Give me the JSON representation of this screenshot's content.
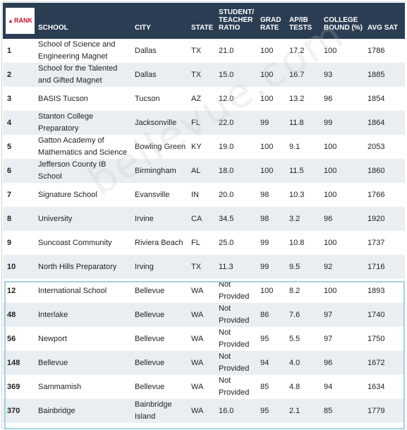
{
  "headers": {
    "rank": "RANK",
    "school": "SCHOOL",
    "city": "CITY",
    "state": "STATE",
    "ratio": "STUDENT/ TEACHER RATIO",
    "grad": "GRAD RATE",
    "apib": "AP/IB TESTS",
    "college": "COLLEGE BOUND (%)",
    "sat": "AVG SAT"
  },
  "rows": [
    {
      "rank": "1",
      "school": "School of Science and Engineering Magnet",
      "city": "Dallas",
      "state": "TX",
      "ratio": "21.0",
      "grad": "100",
      "apib": "17.2",
      "college": "100",
      "sat": "1786"
    },
    {
      "rank": "2",
      "school": "School for the Talented and Gifted Magnet",
      "city": "Dallas",
      "state": "TX",
      "ratio": "15.0",
      "grad": "100",
      "apib": "16.7",
      "college": "93",
      "sat": "1885"
    },
    {
      "rank": "3",
      "school": "BASIS Tucson",
      "city": "Tucson",
      "state": "AZ",
      "ratio": "12.0",
      "grad": "100",
      "apib": "13.2",
      "college": "96",
      "sat": "1854"
    },
    {
      "rank": "4",
      "school": "Stanton College Preparatory",
      "city": "Jacksonville",
      "state": "FL",
      "ratio": "22.0",
      "grad": "99",
      "apib": "11.8",
      "college": "99",
      "sat": "1864"
    },
    {
      "rank": "5",
      "school": "Gatton Academy of Mathematics and Science",
      "city": "Bowling Green",
      "state": "KY",
      "ratio": "19.0",
      "grad": "100",
      "apib": "9.1",
      "college": "100",
      "sat": "2053"
    },
    {
      "rank": "6",
      "school": "Jefferson County IB School",
      "city": "Birmingham",
      "state": "AL",
      "ratio": "18.0",
      "grad": "100",
      "apib": "11.5",
      "college": "100",
      "sat": "1860"
    },
    {
      "rank": "7",
      "school": "Signature School",
      "city": "Evansville",
      "state": "IN",
      "ratio": "20.0",
      "grad": "98",
      "apib": "10.3",
      "college": "100",
      "sat": "1766"
    },
    {
      "rank": "8",
      "school": "University",
      "city": "Irvine",
      "state": "CA",
      "ratio": "34.5",
      "grad": "98",
      "apib": "3.2",
      "college": "96",
      "sat": "1920"
    },
    {
      "rank": "9",
      "school": "Suncoast Community",
      "city": "Riviera Beach",
      "state": "FL",
      "ratio": "25.0",
      "grad": "99",
      "apib": "10.8",
      "college": "100",
      "sat": "1737"
    },
    {
      "rank": "10",
      "school": "North Hills Preparatory",
      "city": "Irving",
      "state": "TX",
      "ratio": "11.3",
      "grad": "99",
      "apib": "9.5",
      "college": "92",
      "sat": "1716"
    },
    {
      "rank": "12",
      "school": "International School",
      "city": "Bellevue",
      "state": "WA",
      "ratio": "Not Provided",
      "grad": "100",
      "apib": "8.2",
      "college": "100",
      "sat": "1893"
    },
    {
      "rank": "48",
      "school": "Interlake",
      "city": "Bellevue",
      "state": "WA",
      "ratio": "Not Provided",
      "grad": "86",
      "apib": "7.6",
      "college": "97",
      "sat": "1740"
    },
    {
      "rank": "56",
      "school": "Newport",
      "city": "Bellevue",
      "state": "WA",
      "ratio": "Not Provided",
      "grad": "95",
      "apib": "5.5",
      "college": "97",
      "sat": "1750"
    },
    {
      "rank": "148",
      "school": "Bellevue",
      "city": "Bellevue",
      "state": "WA",
      "ratio": "Not Provided",
      "grad": "94",
      "apib": "4.0",
      "college": "96",
      "sat": "1672"
    },
    {
      "rank": "369",
      "school": "Sammamish",
      "city": "Bellevue",
      "state": "WA",
      "ratio": "Not Provided",
      "grad": "85",
      "apib": "4.8",
      "college": "94",
      "sat": "1634"
    },
    {
      "rank": "370",
      "school": "Bainbridge",
      "city": "Bainbridge Island",
      "state": "WA",
      "ratio": "16.0",
      "grad": "95",
      "apib": "2.1",
      "college": "85",
      "sat": "1779"
    }
  ],
  "watermark": "bellevue.com",
  "colors": {
    "header_bg": "#2b3d52",
    "rank_accent": "#c8102e",
    "stripe": "#e9eef3",
    "highlight_border": "#9fd3de"
  }
}
